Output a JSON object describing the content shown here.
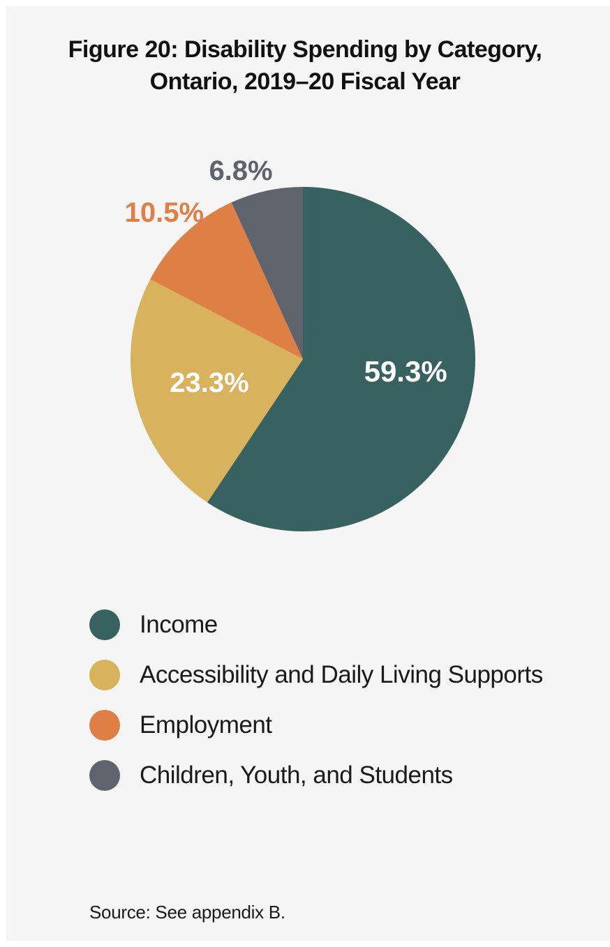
{
  "chart_data": {
    "type": "pie",
    "title_lines": [
      "Figure 20: Disability Spending by Category,",
      "Ontario, 2019–20 Fiscal Year"
    ],
    "slices": [
      {
        "name": "Income",
        "value": 59.3,
        "label": "59.3%",
        "color": "#37625f",
        "label_color": "#ffffff"
      },
      {
        "name": "Accessibility and Daily Living Supports",
        "value": 23.3,
        "label": "23.3%",
        "color": "#d8b25c",
        "label_color": "#ffffff"
      },
      {
        "name": "Employment",
        "value": 10.5,
        "label": "10.5%",
        "color": "#de7f46",
        "label_color": "#de7f46"
      },
      {
        "name": "Children, Youth, and Students",
        "value": 6.8,
        "label": "6.8%",
        "color": "#5f646c",
        "label_color": "#5f646c"
      }
    ],
    "start_angle_deg": 0,
    "direction": "clockwise",
    "legend_position": "bottom"
  },
  "source": "Source: See appendix B."
}
